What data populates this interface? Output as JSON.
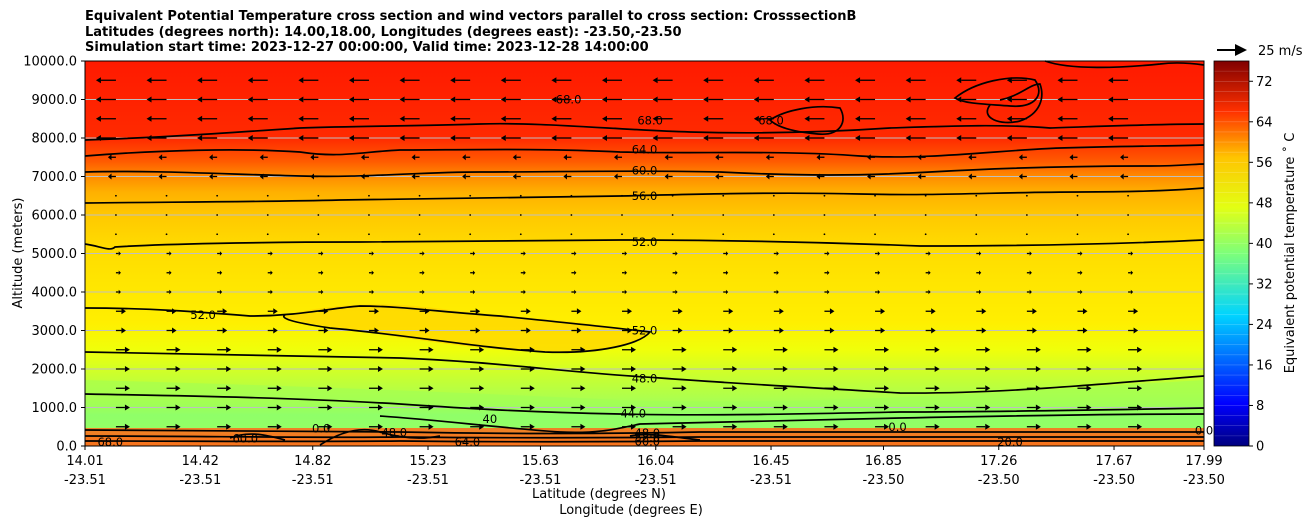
{
  "chart_data": {
    "type": "contour",
    "title_lines": [
      "Equivalent Potential Temperature cross section and wind vectors parallel to cross section: CrosssectionB",
      "Latitudes (degrees north): 14.00,18.00, Longitudes (degrees east): -23.50,-23.50",
      "Simulation start time: 2023-12-27 00:00:00, Valid time: 2023-12-28 14:00:00"
    ],
    "xlabel_lat": "Latitude (degrees N)",
    "xlabel_lon": "Longitude (degrees E)",
    "ylabel": "Altitude (meters)",
    "ylim": [
      0,
      10000
    ],
    "y_ticks": [
      "0.0",
      "1000.0",
      "2000.0",
      "3000.0",
      "4000.0",
      "5000.0",
      "6000.0",
      "7000.0",
      "8000.0",
      "9000.0",
      "10000.0"
    ],
    "x_ticks_lat": [
      "14.01",
      "14.42",
      "14.82",
      "15.23",
      "15.63",
      "16.04",
      "16.45",
      "16.85",
      "17.26",
      "17.67",
      "17.99"
    ],
    "x_ticks_lon": [
      "-23.51",
      "-23.51",
      "-23.51",
      "-23.51",
      "-23.51",
      "-23.51",
      "-23.51",
      "-23.50",
      "-23.50",
      "-23.50",
      "-23.50"
    ],
    "colorbar": {
      "label": "Equivalent potential temperature ˚ C",
      "range": [
        0,
        76
      ],
      "ticks": [
        "0",
        "8",
        "16",
        "24",
        "32",
        "40",
        "48",
        "56",
        "64",
        "72"
      ]
    },
    "quiver_key": {
      "label": "25 m/s"
    },
    "contour_labels": [
      {
        "text": "68.0",
        "lat": 15.73,
        "alt": 9000
      },
      {
        "text": "68.0",
        "lat": 16.02,
        "alt": 8450
      },
      {
        "text": "68.0",
        "lat": 16.45,
        "alt": 8450
      },
      {
        "text": "64.0",
        "lat": 16.0,
        "alt": 7700
      },
      {
        "text": "60.0",
        "lat": 16.0,
        "alt": 7150
      },
      {
        "text": "56.0",
        "lat": 16.0,
        "alt": 6500
      },
      {
        "text": "52.0",
        "lat": 16.0,
        "alt": 5300
      },
      {
        "text": "52.0",
        "lat": 14.43,
        "alt": 3400
      },
      {
        "text": "52.0",
        "lat": 16.0,
        "alt": 3000
      },
      {
        "text": "48.0",
        "lat": 16.0,
        "alt": 1750
      },
      {
        "text": "44.0",
        "lat": 15.96,
        "alt": 850
      },
      {
        "text": "40",
        "lat": 15.45,
        "alt": 700
      },
      {
        "text": "0.0",
        "lat": 14.85,
        "alt": 450
      },
      {
        "text": "48.0",
        "lat": 15.11,
        "alt": 350
      },
      {
        "text": "48.0",
        "lat": 16.01,
        "alt": 340
      },
      {
        "text": "52.0",
        "lat": 16.01,
        "alt": 220
      },
      {
        "text": "60.0",
        "lat": 16.01,
        "alt": 120
      },
      {
        "text": "64.0",
        "lat": 15.37,
        "alt": 100
      },
      {
        "text": "60.0",
        "lat": 14.58,
        "alt": 200
      },
      {
        "text": "68.0",
        "lat": 14.1,
        "alt": 100
      },
      {
        "text": "0.0",
        "lat": 17.99,
        "alt": 400
      },
      {
        "text": "20.0",
        "lat": 17.3,
        "alt": 100
      },
      {
        "text": "0.0",
        "lat": 16.9,
        "alt": 500
      }
    ]
  }
}
